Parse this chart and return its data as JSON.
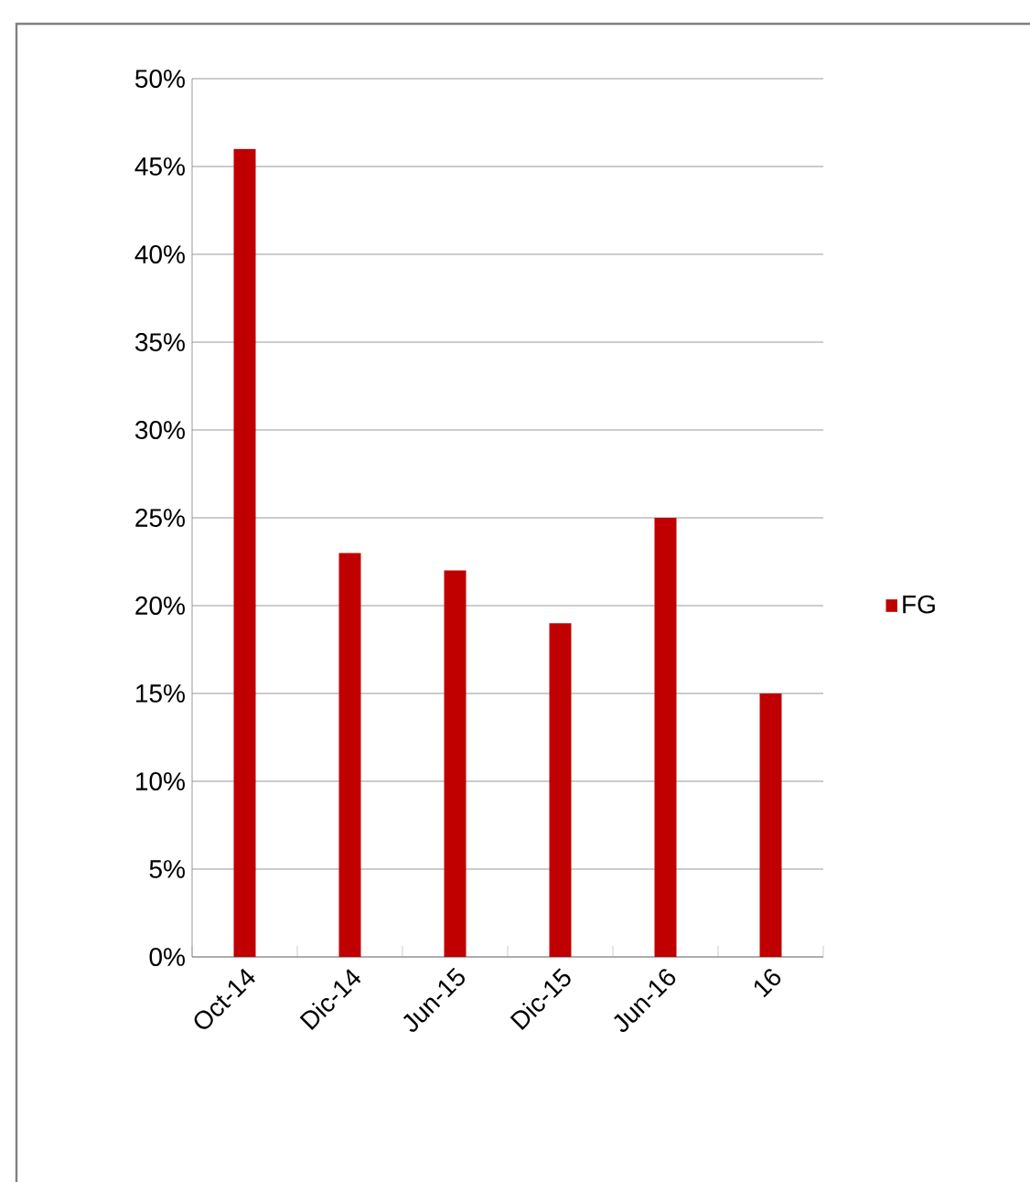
{
  "chart_data": {
    "type": "bar",
    "categories": [
      "Oct-14",
      "Dic-14",
      "Jun-15",
      "Dic-15",
      "Jun-16",
      "16"
    ],
    "series": [
      {
        "name": "FG",
        "color": "#c00000",
        "values": [
          46,
          23,
          22,
          19,
          25,
          15
        ]
      }
    ],
    "ylim": [
      0,
      50
    ],
    "yticks": [
      {
        "value": 0,
        "label": "0%"
      },
      {
        "value": 5,
        "label": "5%"
      },
      {
        "value": 10,
        "label": "10%"
      },
      {
        "value": 15,
        "label": "15%"
      },
      {
        "value": 20,
        "label": "20%"
      },
      {
        "value": 25,
        "label": "25%"
      },
      {
        "value": 30,
        "label": "30%"
      },
      {
        "value": 35,
        "label": "35%"
      },
      {
        "value": 40,
        "label": "40%"
      },
      {
        "value": 45,
        "label": "45%"
      },
      {
        "value": 50,
        "label": "50%"
      }
    ],
    "grid": "y",
    "legend": "right"
  }
}
